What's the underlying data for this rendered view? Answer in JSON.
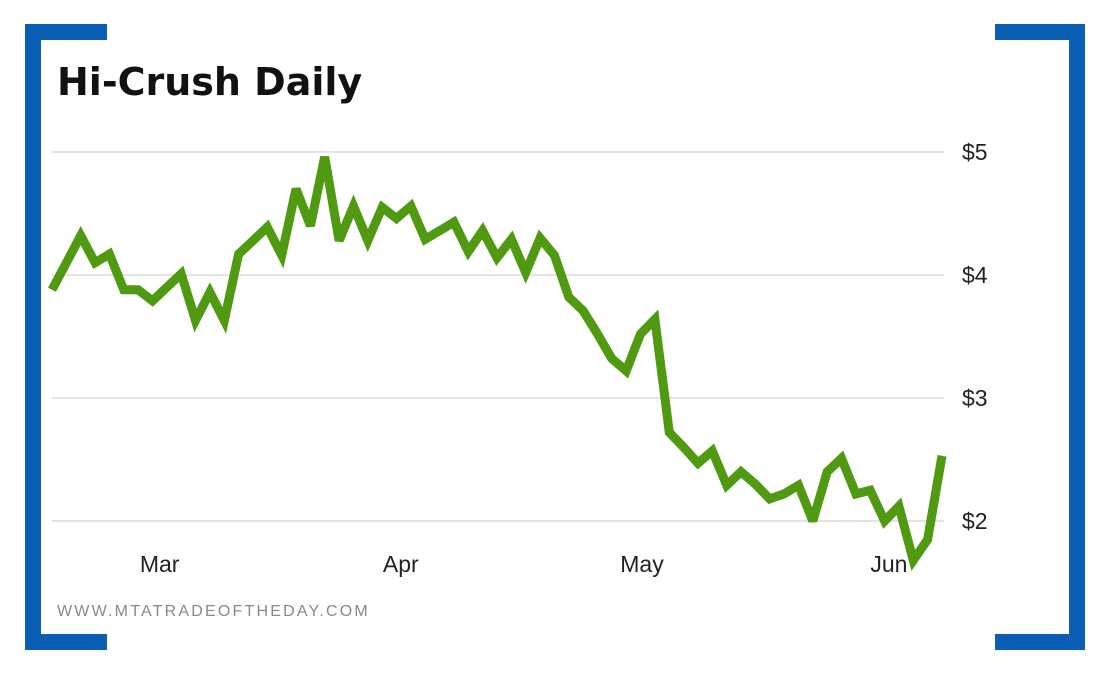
{
  "title": "Hi-Crush Daily",
  "footer": "WWW.MTATRADEOFTHEDAY.COM",
  "colors": {
    "line": "#4f9a10",
    "frame": "#0a5fb4",
    "grid": "#c8c8c8"
  },
  "chart_data": {
    "type": "line",
    "title": "Hi-Crush Daily",
    "xlabel": "",
    "ylabel": "",
    "x_ticks": [
      "Mar",
      "Apr",
      "May",
      "Jun"
    ],
    "x_tick_index": [
      7.5,
      24.3,
      41.1,
      58.3
    ],
    "y_ticks": [
      "$5",
      "$4",
      "$3",
      "$2"
    ],
    "y_tick_values": [
      5,
      4,
      3,
      2
    ],
    "ylim": [
      1.5,
      5.2
    ],
    "grid": "horizontal",
    "axis_position": "right",
    "series": [
      {
        "values": [
          3.88,
          4.1,
          4.32,
          4.1,
          4.17,
          3.88,
          3.88,
          3.79,
          3.9,
          4.01,
          3.63,
          3.86,
          3.63,
          4.17,
          4.28,
          4.39,
          4.16,
          4.7,
          4.4,
          4.96,
          4.28,
          4.56,
          4.28,
          4.55,
          4.46,
          4.56,
          4.29,
          4.36,
          4.43,
          4.19,
          4.36,
          4.14,
          4.29,
          4.02,
          4.3,
          4.16,
          3.82,
          3.71,
          3.52,
          3.32,
          3.22,
          3.52,
          3.64,
          2.72,
          2.6,
          2.47,
          2.57,
          2.29,
          2.4,
          2.3,
          2.18,
          2.22,
          2.29,
          2.0,
          2.4,
          2.51,
          2.22,
          2.25,
          2.0,
          2.12,
          1.68,
          1.85,
          2.53
        ]
      }
    ]
  }
}
